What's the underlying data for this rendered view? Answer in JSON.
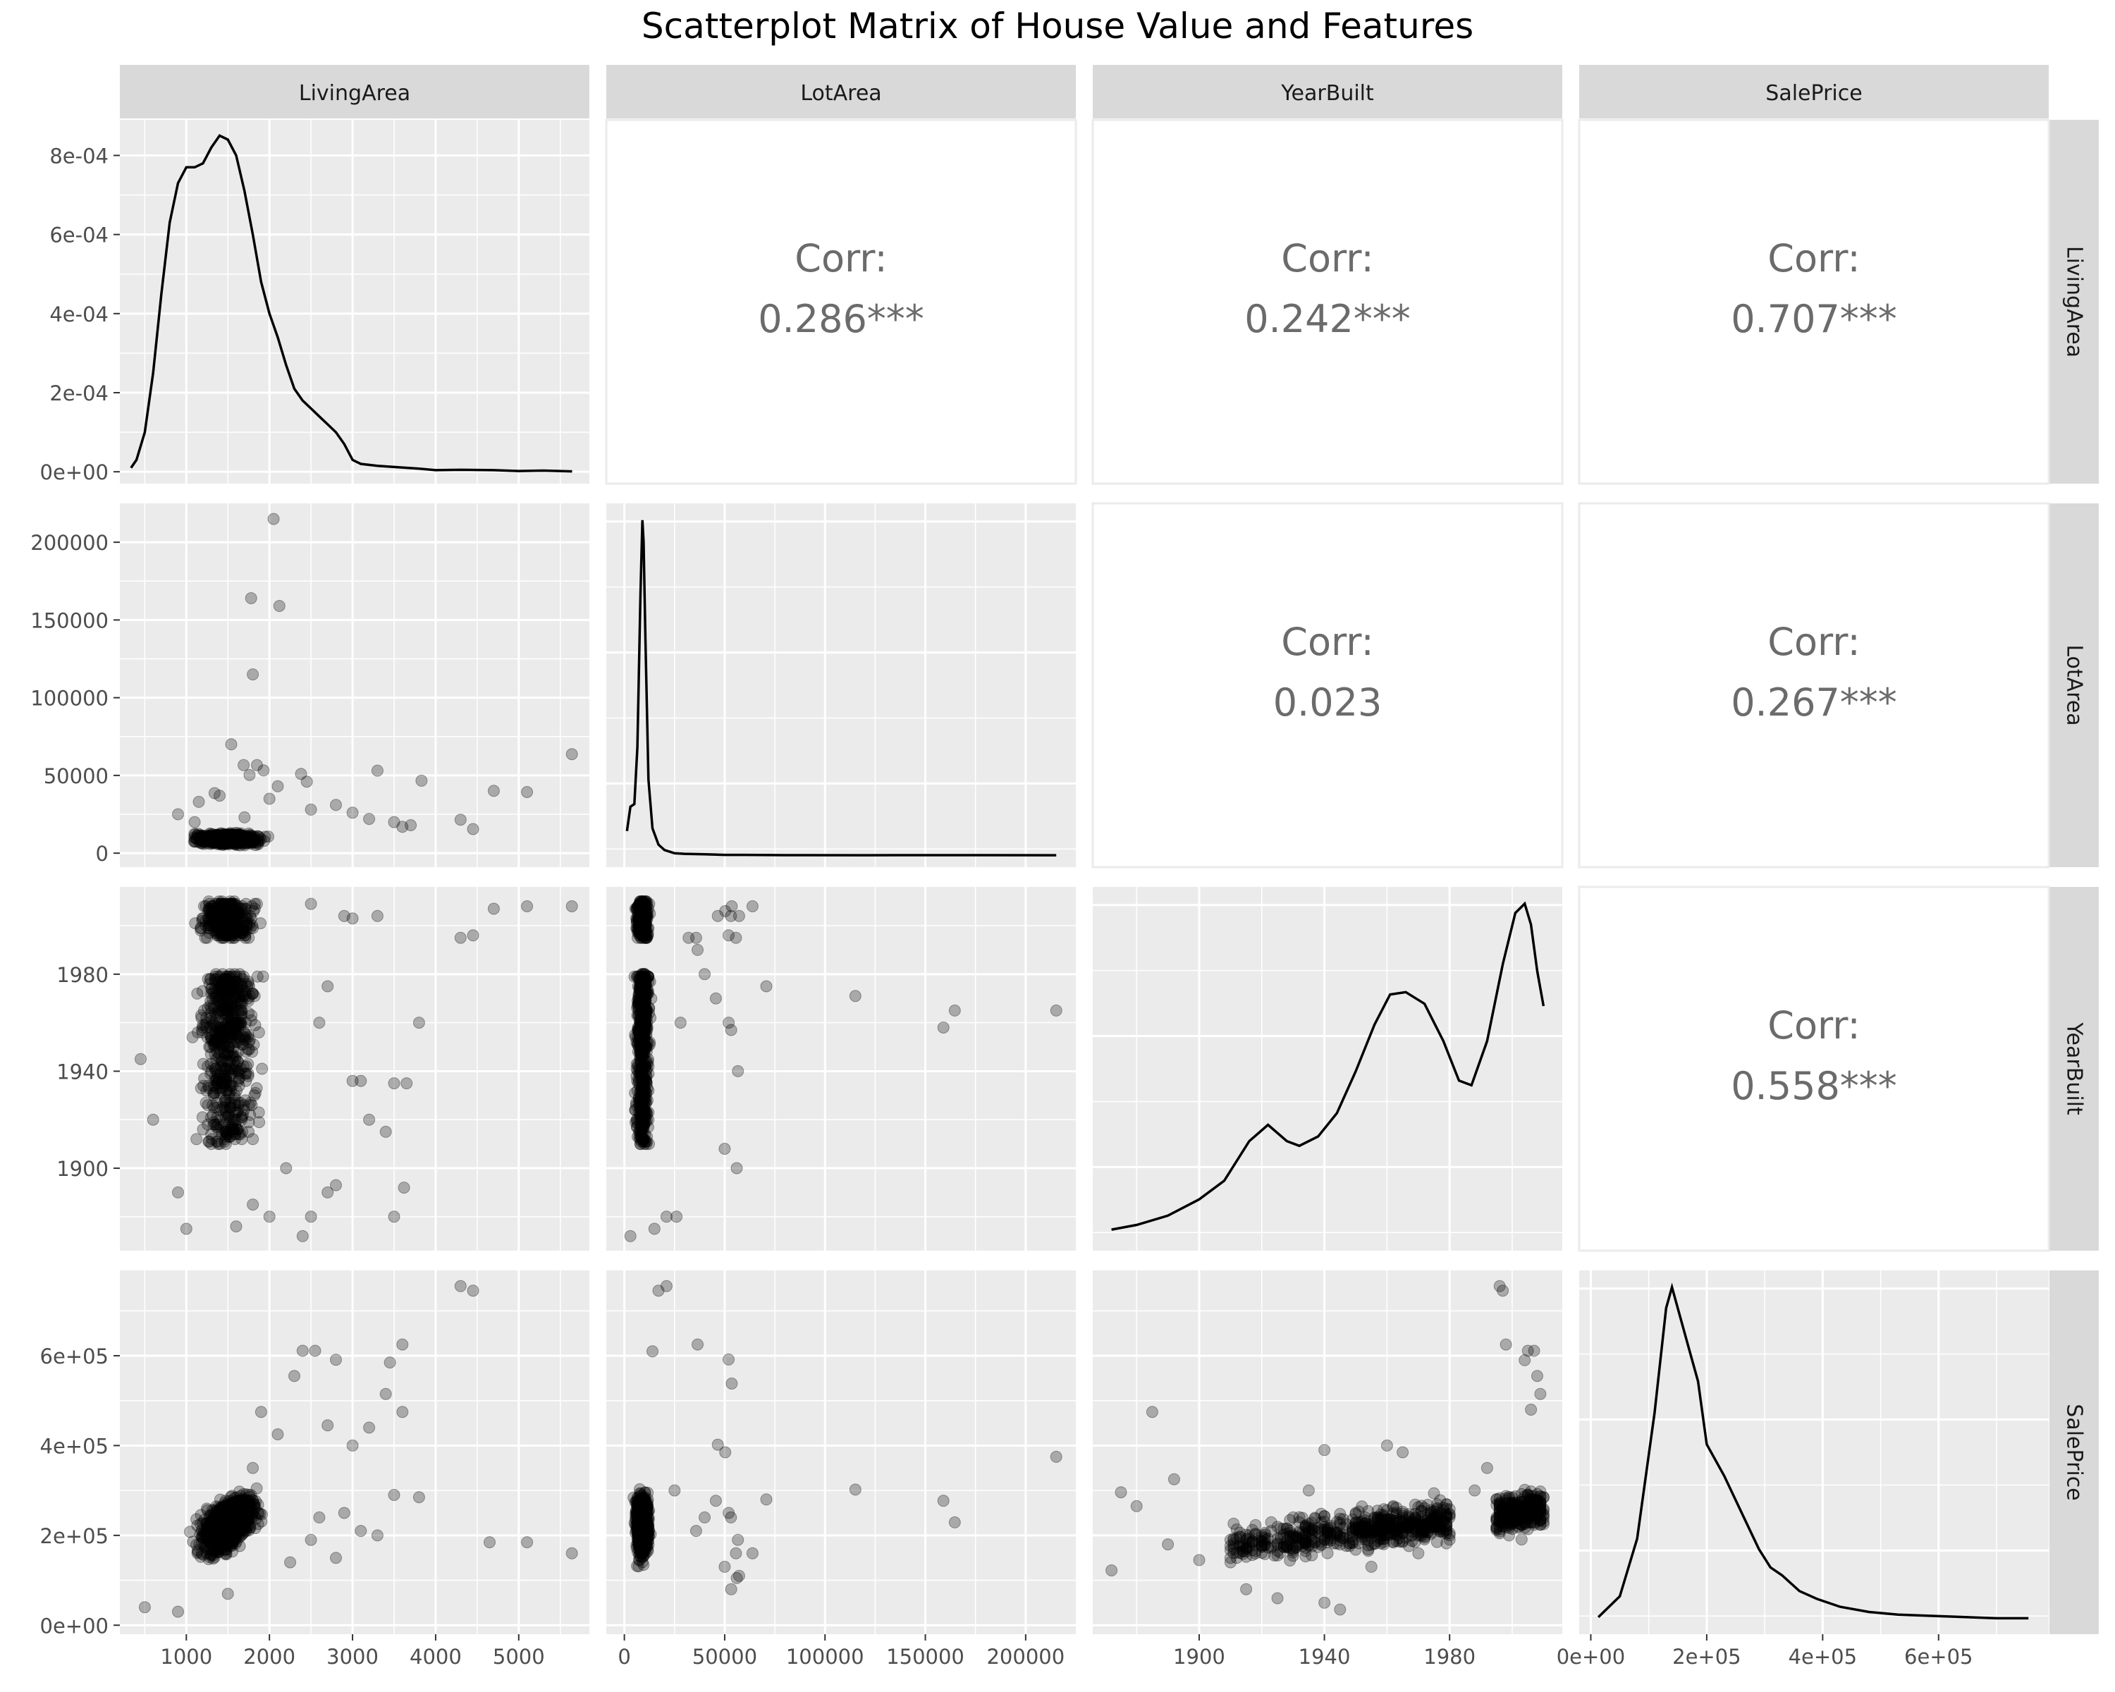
{
  "chart_data": {
    "type": "scatter-matrix",
    "title": "Scatterplot Matrix of House Value and Features",
    "variables": [
      "LivingArea",
      "LotArea",
      "YearBuilt",
      "SalePrice"
    ],
    "axes": {
      "LivingArea": {
        "range": [
          200,
          5850
        ],
        "ticks": [
          1000,
          2000,
          3000,
          4000,
          5000
        ],
        "tick_labels": [
          "1000",
          "2000",
          "3000",
          "4000",
          "5000"
        ]
      },
      "LotArea": {
        "range": [
          -9000,
          225000
        ],
        "ticks": [
          0,
          50000,
          100000,
          150000,
          200000
        ],
        "tick_labels": [
          "0",
          "50000",
          "100000",
          "150000",
          "200000"
        ]
      },
      "YearBuilt": {
        "range": [
          1866,
          2016
        ],
        "ticks": [
          1900,
          1940,
          1980
        ],
        "tick_labels": [
          "1900",
          "1940",
          "1980"
        ]
      },
      "SalePrice": {
        "range": [
          -20000,
          790000
        ],
        "ticks": [
          0,
          200000,
          400000,
          600000
        ],
        "tick_labels": [
          "0e+00",
          "2e+05",
          "4e+05",
          "6e+05"
        ]
      }
    },
    "density_axis": {
      "range": [
        -3e-05,
        0.00089
      ],
      "ticks": [
        0,
        0.0002,
        0.0004,
        0.0006,
        0.0008
      ],
      "tick_labels": [
        "0e+00",
        "2e-04",
        "4e-04",
        "6e-04",
        "8e-04"
      ]
    },
    "correlations": [
      {
        "row": "LivingArea",
        "col": "LotArea",
        "label": "Corr:",
        "value": "0.286***"
      },
      {
        "row": "LivingArea",
        "col": "YearBuilt",
        "label": "Corr:",
        "value": "0.242***"
      },
      {
        "row": "LivingArea",
        "col": "SalePrice",
        "label": "Corr:",
        "value": "0.707***"
      },
      {
        "row": "LotArea",
        "col": "YearBuilt",
        "label": "Corr:",
        "value": "0.023"
      },
      {
        "row": "LotArea",
        "col": "SalePrice",
        "label": "Corr:",
        "value": "0.267***"
      },
      {
        "row": "YearBuilt",
        "col": "SalePrice",
        "label": "Corr:",
        "value": "0.558***"
      }
    ],
    "densities": {
      "LivingArea": [
        [
          334,
          1e-05
        ],
        [
          400,
          3e-05
        ],
        [
          500,
          0.0001
        ],
        [
          600,
          0.00025
        ],
        [
          700,
          0.00045
        ],
        [
          800,
          0.00063
        ],
        [
          900,
          0.00073
        ],
        [
          1000,
          0.00077
        ],
        [
          1100,
          0.00077
        ],
        [
          1200,
          0.00078
        ],
        [
          1300,
          0.00082
        ],
        [
          1400,
          0.00085
        ],
        [
          1500,
          0.00084
        ],
        [
          1600,
          0.0008
        ],
        [
          1700,
          0.00071
        ],
        [
          1800,
          0.0006
        ],
        [
          1900,
          0.00048
        ],
        [
          2000,
          0.0004
        ],
        [
          2100,
          0.00034
        ],
        [
          2200,
          0.00027
        ],
        [
          2300,
          0.00021
        ],
        [
          2400,
          0.00018
        ],
        [
          2500,
          0.00016
        ],
        [
          2600,
          0.00014
        ],
        [
          2700,
          0.00012
        ],
        [
          2800,
          0.0001
        ],
        [
          2900,
          7e-05
        ],
        [
          3000,
          3e-05
        ],
        [
          3100,
          2e-05
        ],
        [
          3300,
          1.5e-05
        ],
        [
          3500,
          1.2e-05
        ],
        [
          3800,
          8e-06
        ],
        [
          4000,
          4e-06
        ],
        [
          4300,
          5e-06
        ],
        [
          4700,
          4e-06
        ],
        [
          5000,
          2e-06
        ],
        [
          5300,
          3e-06
        ],
        [
          5642,
          1e-06
        ]
      ],
      "LotArea": [
        [
          1300,
          4.5e-05
        ],
        [
          3000,
          9e-05
        ],
        [
          5000,
          9.5e-05
        ],
        [
          6500,
          0.0002
        ],
        [
          8000,
          0.00048
        ],
        [
          9000,
          0.00062
        ],
        [
          9600,
          0.00058
        ],
        [
          10500,
          0.0004
        ],
        [
          12000,
          0.00014
        ],
        [
          14000,
          5e-05
        ],
        [
          17000,
          2e-05
        ],
        [
          20000,
          1e-05
        ],
        [
          25000,
          4e-06
        ],
        [
          30000,
          3e-06
        ],
        [
          40000,
          2e-06
        ],
        [
          50000,
          1e-06
        ],
        [
          60000,
          1e-06
        ],
        [
          80000,
          5e-07
        ],
        [
          120000,
          3e-07
        ],
        [
          160000,
          4e-07
        ],
        [
          215245,
          3e-07
        ]
      ],
      "YearBuilt": [
        [
          1872,
          4e-05
        ],
        [
          1880,
          6e-05
        ],
        [
          1890,
          0.0001
        ],
        [
          1900,
          0.00017
        ],
        [
          1908,
          0.00025
        ],
        [
          1916,
          0.00042
        ],
        [
          1922,
          0.00049
        ],
        [
          1928,
          0.00042
        ],
        [
          1932,
          0.0004
        ],
        [
          1938,
          0.00044
        ],
        [
          1944,
          0.00054
        ],
        [
          1950,
          0.00072
        ],
        [
          1956,
          0.00092
        ],
        [
          1961,
          0.00105
        ],
        [
          1966,
          0.00106
        ],
        [
          1972,
          0.00101
        ],
        [
          1978,
          0.00085
        ],
        [
          1983,
          0.00068
        ],
        [
          1987,
          0.00066
        ],
        [
          1992,
          0.00085
        ],
        [
          1997,
          0.00118
        ],
        [
          2001,
          0.0014
        ],
        [
          2004,
          0.00144
        ],
        [
          2006,
          0.00135
        ],
        [
          2008,
          0.00115
        ],
        [
          2010,
          0.001
        ]
      ],
      "SalePrice": [
        [
          13000,
          1e-06
        ],
        [
          50000,
          5e-06
        ],
        [
          80000,
          1.6e-05
        ],
        [
          110000,
          4e-05
        ],
        [
          130000,
          6e-05
        ],
        [
          140000,
          6.4e-05
        ],
        [
          155000,
          5.8e-05
        ],
        [
          170000,
          5.2e-05
        ],
        [
          185000,
          4.6e-05
        ],
        [
          200000,
          3.4e-05
        ],
        [
          230000,
          2.8e-05
        ],
        [
          260000,
          2.1e-05
        ],
        [
          290000,
          1.4e-05
        ],
        [
          310000,
          1.05e-05
        ],
        [
          330000,
          9e-06
        ],
        [
          360000,
          6e-06
        ],
        [
          390000,
          4.5e-06
        ],
        [
          430000,
          3e-06
        ],
        [
          480000,
          2e-06
        ],
        [
          530000,
          1.5e-06
        ],
        [
          600000,
          1.2e-06
        ],
        [
          700000,
          8e-07
        ],
        [
          755000,
          8e-07
        ]
      ]
    },
    "scatter": {
      "LivingArea_vs_LotArea": [
        [
          2050,
          215000
        ],
        [
          1780,
          164000
        ],
        [
          2120,
          159000
        ],
        [
          1800,
          115000
        ],
        [
          1540,
          70000
        ],
        [
          5640,
          63700
        ],
        [
          3300,
          53100
        ],
        [
          2380,
          51000
        ],
        [
          1690,
          56600
        ],
        [
          1850,
          56600
        ],
        [
          1930,
          53200
        ],
        [
          1760,
          50300
        ],
        [
          2450,
          46000
        ],
        [
          3830,
          46600
        ],
        [
          4700,
          40100
        ],
        [
          5100,
          39300
        ],
        [
          1400,
          37000
        ],
        [
          1340,
          38600
        ],
        [
          2000,
          35000
        ],
        [
          2100,
          43000
        ],
        [
          1150,
          33000
        ],
        [
          2800,
          31000
        ],
        [
          3000,
          26000
        ],
        [
          3200,
          22000
        ],
        [
          4300,
          21500
        ],
        [
          4450,
          15500
        ],
        [
          3700,
          18000
        ],
        [
          2500,
          28000
        ],
        [
          3500,
          20000
        ],
        [
          3600,
          17000
        ],
        [
          900,
          25000
        ],
        [
          1100,
          20000
        ],
        [
          1700,
          23000
        ]
      ],
      "LivingArea_vs_YearBuilt": [
        [
          5640,
          2008
        ],
        [
          5100,
          2008
        ],
        [
          4700,
          2007
        ],
        [
          4450,
          1996
        ],
        [
          4300,
          1995
        ],
        [
          3800,
          1960
        ],
        [
          3500,
          1935
        ],
        [
          3650,
          1935
        ],
        [
          3400,
          1915
        ],
        [
          3620,
          1892
        ],
        [
          3500,
          1880
        ],
        [
          3100,
          1936
        ],
        [
          3000,
          1936
        ],
        [
          3200,
          1920
        ],
        [
          2800,
          1893
        ],
        [
          2700,
          1890
        ],
        [
          2500,
          1880
        ],
        [
          2400,
          1872
        ],
        [
          2000,
          1880
        ],
        [
          1800,
          1885
        ],
        [
          1000,
          1875
        ],
        [
          900,
          1890
        ],
        [
          1600,
          1876
        ],
        [
          2600,
          1960
        ],
        [
          2700,
          1975
        ],
        [
          3000,
          2003
        ],
        [
          3300,
          2004
        ],
        [
          2900,
          2004
        ],
        [
          2500,
          2009
        ],
        [
          600,
          1920
        ],
        [
          450,
          1945
        ],
        [
          1300,
          1910
        ],
        [
          2200,
          1900
        ]
      ],
      "LivingArea_vs_SalePrice": [
        [
          4300,
          755000
        ],
        [
          4450,
          745000
        ],
        [
          3600,
          625000
        ],
        [
          2400,
          611000
        ],
        [
          2550,
          611000
        ],
        [
          2300,
          555000
        ],
        [
          3450,
          585000
        ],
        [
          2800,
          591000
        ],
        [
          3800,
          285000
        ],
        [
          4650,
          184750
        ],
        [
          5100,
          184750
        ],
        [
          5640,
          160000
        ],
        [
          3300,
          200000
        ],
        [
          2900,
          250000
        ],
        [
          2600,
          240000
        ],
        [
          3500,
          290000
        ],
        [
          3000,
          400000
        ],
        [
          3200,
          440000
        ],
        [
          2700,
          445000
        ],
        [
          3400,
          515000
        ],
        [
          1900,
          475000
        ],
        [
          2100,
          425000
        ],
        [
          3600,
          475000
        ],
        [
          2500,
          190000
        ],
        [
          2250,
          140000
        ],
        [
          1500,
          70000
        ],
        [
          900,
          30000
        ],
        [
          500,
          40000
        ],
        [
          1800,
          350000
        ],
        [
          2800,
          150000
        ],
        [
          3100,
          210000
        ]
      ],
      "LotArea_vs_YearBuilt": [
        [
          215245,
          1965
        ],
        [
          164660,
          1965
        ],
        [
          159000,
          1958
        ],
        [
          115149,
          1971
        ],
        [
          70761,
          1975
        ],
        [
          63887,
          2008
        ],
        [
          57200,
          2004
        ],
        [
          53504,
          2008
        ],
        [
          53107,
          2004
        ],
        [
          50271,
          2006
        ],
        [
          46589,
          2004
        ],
        [
          51974,
          1996
        ],
        [
          55600,
          1995
        ],
        [
          36500,
          1990
        ],
        [
          45600,
          1970
        ],
        [
          40000,
          1980
        ],
        [
          52000,
          1960
        ],
        [
          56600,
          1940
        ],
        [
          53227,
          1957
        ],
        [
          35760,
          1995
        ],
        [
          50000,
          1908
        ],
        [
          56000,
          1900
        ],
        [
          28000,
          1960
        ],
        [
          32000,
          1995
        ],
        [
          21000,
          1880
        ],
        [
          15000,
          1875
        ],
        [
          3000,
          1872
        ],
        [
          8000,
          1910
        ],
        [
          12000,
          1920
        ],
        [
          26000,
          1880
        ]
      ],
      "LotArea_vs_SalePrice": [
        [
          215245,
          375000
        ],
        [
          164660,
          228950
        ],
        [
          159000,
          277000
        ],
        [
          115149,
          302000
        ],
        [
          70761,
          280000
        ],
        [
          63887,
          160000
        ],
        [
          57200,
          110000
        ],
        [
          53504,
          538000
        ],
        [
          53107,
          240000
        ],
        [
          50271,
          385000
        ],
        [
          46589,
          402000
        ],
        [
          51974,
          591587
        ],
        [
          55600,
          160000
        ],
        [
          36500,
          625000
        ],
        [
          45600,
          277000
        ],
        [
          40000,
          240000
        ],
        [
          52000,
          250000
        ],
        [
          56600,
          190000
        ],
        [
          53227,
          80000
        ],
        [
          35760,
          210000
        ],
        [
          50000,
          130000
        ],
        [
          56000,
          105000
        ],
        [
          25000,
          300000
        ],
        [
          21000,
          755000
        ],
        [
          17000,
          745000
        ],
        [
          14000,
          610000
        ]
      ],
      "YearBuilt_vs_SalePrice": [
        [
          1885,
          475000
        ],
        [
          1892,
          325000
        ],
        [
          1875,
          296000
        ],
        [
          1880,
          265000
        ],
        [
          1872,
          122000
        ],
        [
          1890,
          180000
        ],
        [
          1900,
          145000
        ],
        [
          1910,
          140000
        ],
        [
          1920,
          200000
        ],
        [
          1935,
          300000
        ],
        [
          1940,
          390000
        ],
        [
          1960,
          400000
        ],
        [
          1965,
          385000
        ],
        [
          1930,
          240000
        ],
        [
          1996,
          755000
        ],
        [
          1997,
          745000
        ],
        [
          1998,
          625000
        ],
        [
          2005,
          611000
        ],
        [
          2007,
          611000
        ],
        [
          2004,
          590000
        ],
        [
          2008,
          555000
        ],
        [
          2009,
          515000
        ],
        [
          2006,
          480000
        ],
        [
          1988,
          300000
        ],
        [
          1992,
          350000
        ],
        [
          1950,
          250000
        ],
        [
          1945,
          180000
        ],
        [
          1955,
          130000
        ],
        [
          1970,
          160000
        ],
        [
          1980,
          200000
        ],
        [
          2000,
          260000
        ],
        [
          1925,
          60000
        ],
        [
          1915,
          80000
        ],
        [
          1940,
          50000
        ],
        [
          1945,
          35000
        ]
      ]
    }
  }
}
